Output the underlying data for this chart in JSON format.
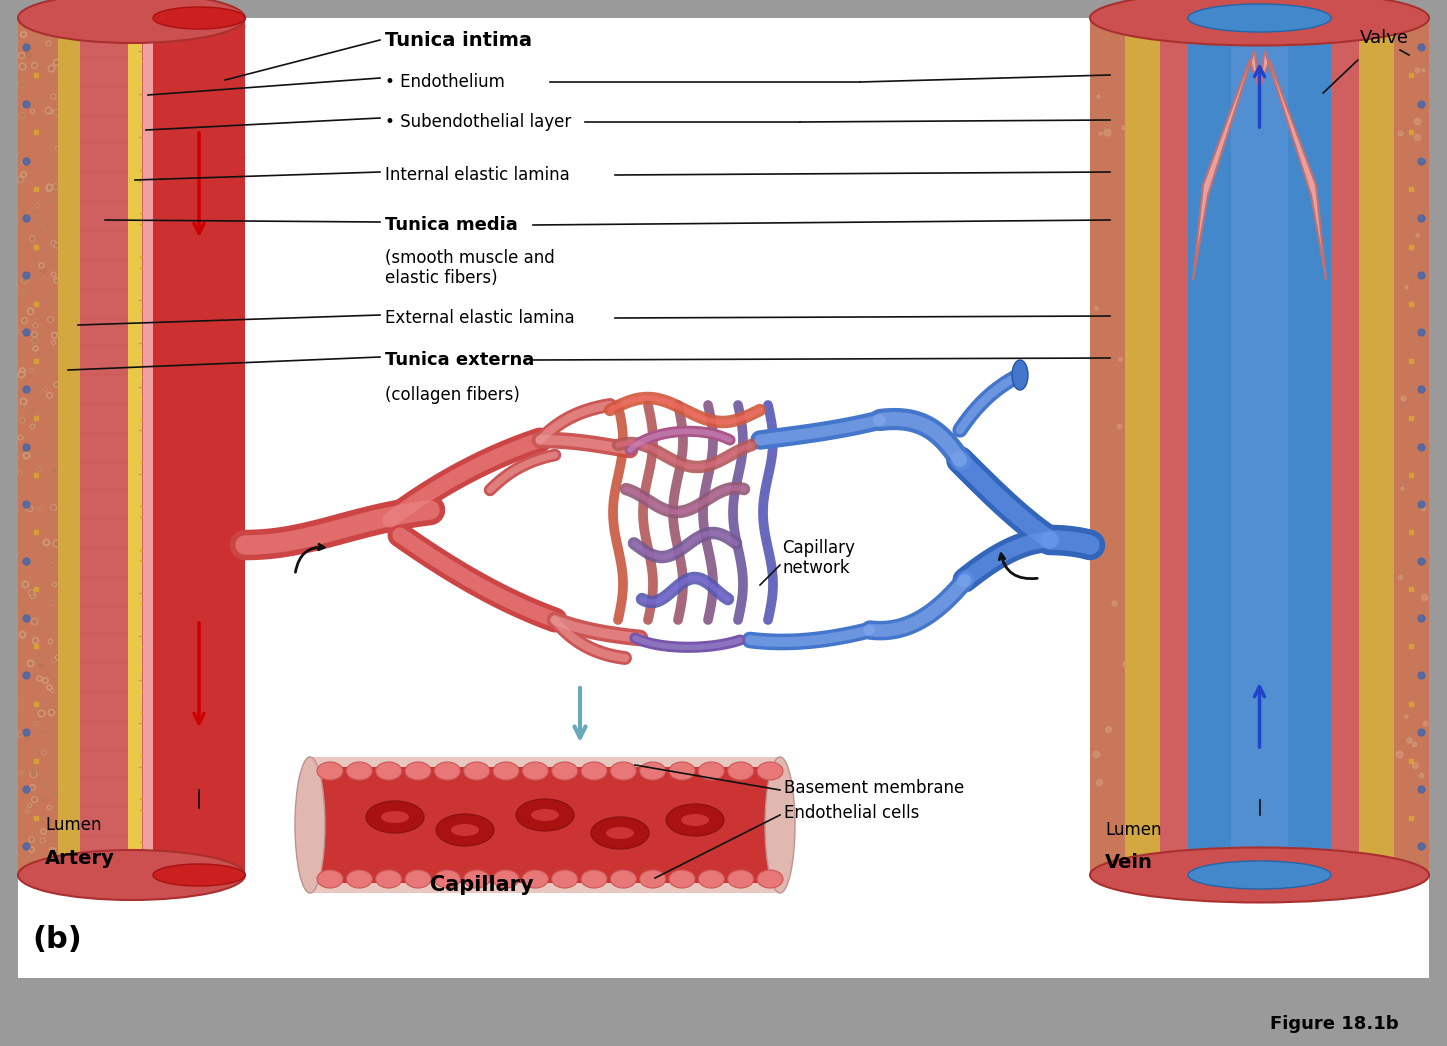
{
  "bg_outer": "#9a9a9a",
  "bg_inner": "#ffffff",
  "fig_label": "(b)",
  "fig_ref": "Figure 18.1b",
  "labels": {
    "tunica_intima": "Tunica intima",
    "endothelium": "• Endothelium",
    "subendothelial": "• Subendothelial layer",
    "internal_elastic": "Internal elastic lamina",
    "tunica_media": "Tunica media",
    "tunica_media_sub": "(smooth muscle and\nelastic fibers)",
    "external_elastic": "External elastic lamina",
    "tunica_externa": "Tunica externa",
    "tunica_externa_sub": "(collagen fibers)",
    "lumen_artery": "Lumen",
    "artery": "Artery",
    "lumen_vein": "Lumen",
    "vein": "Vein",
    "valve": "Valve",
    "capillary_network": "Capillary\nnetwork",
    "basement_membrane": "Basement membrane",
    "endothelial_cells": "Endothelial cells",
    "capillary": "Capillary"
  },
  "colors": {
    "gray_bg": "#9a9a9a",
    "white": "#ffffff",
    "artery_outer_tissue": "#c87860",
    "artery_outer_pink": "#d4908080",
    "artery_tunica_ext": "#c89060",
    "artery_tunica_media": "#cc6060",
    "artery_elastic": "#d4a860",
    "artery_intima": "#e88888",
    "artery_lumen": "#cc3030",
    "vein_outer_tissue": "#c87860",
    "vein_tunica_ext": "#c89060",
    "vein_tunica_media": "#cc6060",
    "vein_lumen_blue": "#4488cc",
    "vein_lumen_light": "#88aadd",
    "cap_red": "#cc3333",
    "cap_blue": "#4477bb",
    "cap_purple": "#8866aa",
    "arrow_red": "#cc0000",
    "arrow_blue": "#2244cc",
    "arrow_teal": "#66aabb",
    "line_black": "#111111",
    "text_black": "#000000",
    "tissue_pink": "#e8a090",
    "tissue_dark": "#c07060",
    "gold": "#d4a030",
    "gold2": "#e8c060"
  }
}
